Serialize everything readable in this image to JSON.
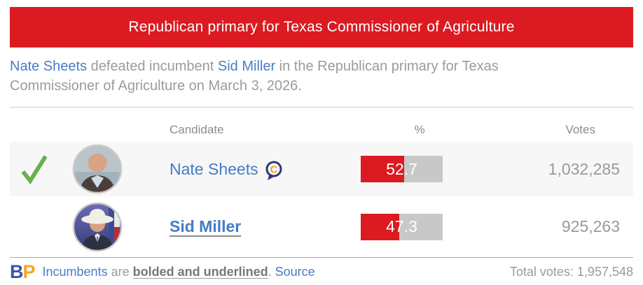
{
  "banner": {
    "title": "Republican primary for Texas Commissioner of Agriculture"
  },
  "summary": {
    "link1": "Nate Sheets",
    "middle": " defeated incumbent ",
    "link2": "Sid Miller",
    "rest": " in the Republican primary for Texas Commissioner of Agriculture on March 3, 2026."
  },
  "table": {
    "headers": {
      "candidate": "Candidate",
      "percent": "%",
      "votes": "Votes"
    },
    "rows": [
      {
        "name": "Nate Sheets",
        "winner": true,
        "incumbent": false,
        "candidate_connection": true,
        "percent_label": "52.7",
        "percent_value": 52.7,
        "votes": "1,032,285"
      },
      {
        "name": "Sid Miller",
        "winner": false,
        "incumbent": true,
        "candidate_connection": false,
        "percent_label": "47.3",
        "percent_value": 47.3,
        "votes": "925,263"
      }
    ]
  },
  "footer": {
    "logo_b": "B",
    "logo_p": "P",
    "incumbents_link": "Incumbents",
    "are_text": " are ",
    "bolded_text": "bolded and underlined",
    "period_text": ". ",
    "source_link": "Source",
    "total_votes": "Total votes: 1,957,548"
  },
  "chart_data": {
    "type": "bar",
    "categories": [
      "Nate Sheets",
      "Sid Miller"
    ],
    "values": [
      52.7,
      47.3
    ],
    "votes": [
      1032285,
      925263
    ],
    "total_votes": 1957548,
    "title": "Republican primary for Texas Commissioner of Agriculture",
    "xlabel": "%",
    "ylabel": "",
    "xlim": [
      0,
      100
    ],
    "bar_color": "#dc1a21",
    "track_color": "#c8c8c8"
  },
  "colors": {
    "banner_red": "#dc1a21",
    "bar_red": "#dc1a21",
    "bar_gray": "#c8c8c8",
    "link_blue": "#447dc2",
    "check_green": "#6ab04c",
    "bp_blue": "#3b55a6",
    "bp_orange": "#f7a51d",
    "row_alt_bg": "#f7f7f7",
    "text_gray": "#9b9b9b"
  }
}
